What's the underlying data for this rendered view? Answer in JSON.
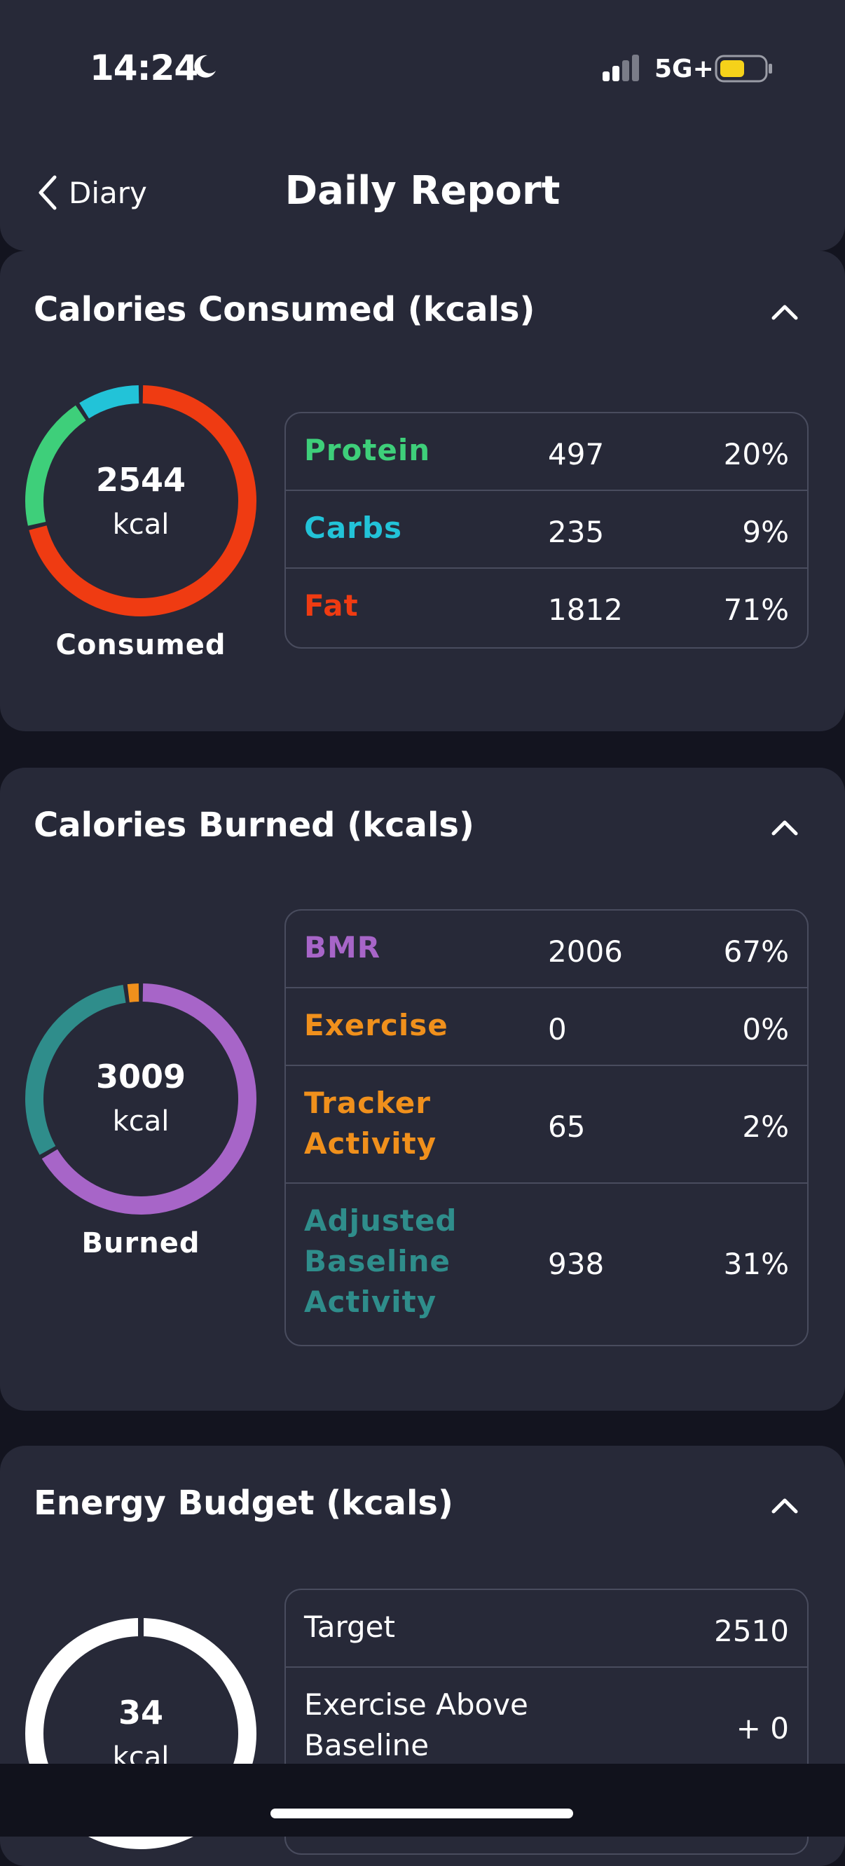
{
  "status": {
    "time": "14:24",
    "network": "5G+"
  },
  "header": {
    "back_label": "Diary",
    "title": "Daily Report"
  },
  "consumed": {
    "title": "Calories Consumed (kcals)",
    "total": "2544",
    "unit": "kcal",
    "caption": "Consumed",
    "rows": [
      {
        "label": "Protein",
        "value": "497",
        "pct": "20%",
        "color": "#3ecf7a"
      },
      {
        "label": "Carbs",
        "value": "235",
        "pct": "9%",
        "color": "#22c3d8"
      },
      {
        "label": "Fat",
        "value": "1812",
        "pct": "71%",
        "color": "#ef3b12"
      }
    ]
  },
  "burned": {
    "title": "Calories Burned (kcals)",
    "total": "3009",
    "unit": "kcal",
    "caption": "Burned",
    "rows": [
      {
        "label": "BMR",
        "value": "2006",
        "pct": "67%",
        "color": "#a765c8"
      },
      {
        "label": "Exercise",
        "value": "0",
        "pct": "0%",
        "color": "#f0901c"
      },
      {
        "label": "Tracker Activity",
        "label_lines": [
          "Tracker",
          "Activity"
        ],
        "value": "65",
        "pct": "2%",
        "color": "#f0901c"
      },
      {
        "label": "Adjusted Baseline Activity",
        "label_lines": [
          "Adjusted",
          "Baseline",
          "Activity"
        ],
        "value": "938",
        "pct": "31%",
        "color": "#2f8d8b"
      }
    ]
  },
  "budget": {
    "title": "Energy Budget (kcals)",
    "total": "34",
    "unit": "kcal",
    "rows": [
      {
        "label": "Target",
        "value": "2510"
      },
      {
        "label": "Exercise Above Baseline",
        "label_lines": [
          "Exercise Above",
          "Baseline"
        ],
        "value": "+ 0"
      }
    ]
  },
  "colors": {
    "background": "#13141f",
    "card": "#272938",
    "border": "#494c5e"
  },
  "icons": [
    "moon-icon",
    "signal-icon",
    "battery-icon",
    "chevron-left-icon",
    "chevron-up-icon"
  ]
}
